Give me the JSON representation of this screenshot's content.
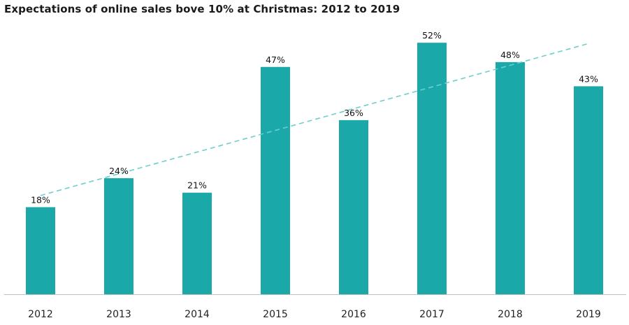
{
  "chart_data": {
    "type": "bar",
    "title": "Expectations of online sales bove 10% at Christmas: 2012 to 2019",
    "categories": [
      "2012",
      "2013",
      "2014",
      "2015",
      "2016",
      "2017",
      "2018",
      "2019"
    ],
    "values": [
      18,
      24,
      21,
      47,
      36,
      52,
      48,
      43
    ],
    "data_labels": [
      "18%",
      "24%",
      "21%",
      "47%",
      "36%",
      "52%",
      "48%",
      "43%"
    ],
    "unit": "%",
    "ylim": [
      0,
      60
    ],
    "trendline": {
      "style": "dashed",
      "type": "linear"
    },
    "xlabel": "",
    "ylabel": "",
    "grid": false,
    "legend": "none",
    "bar_color": "#1aa8a8",
    "trend_color": "#6ccfcf",
    "axis_color": "#bfbfbf"
  }
}
